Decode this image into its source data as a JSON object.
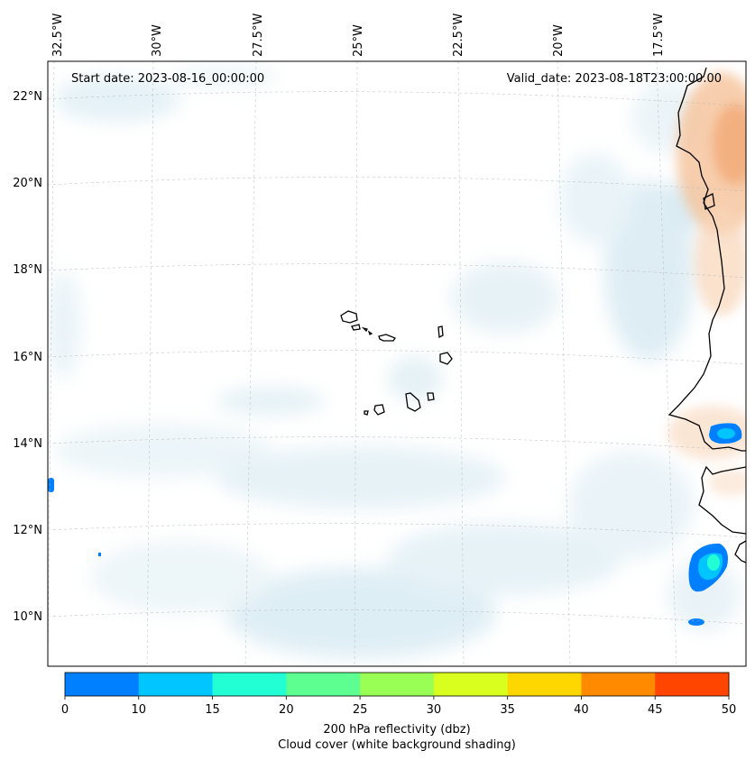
{
  "map": {
    "start_date": "Start date: 2023-08-16_00:00:00",
    "valid_date": "Valid_date: 2023-08-18T23:00:00.00",
    "lon_labels": [
      "32.5°W",
      "30°W",
      "27.5°W",
      "25°W",
      "22.5°W",
      "20°W",
      "17.5°W"
    ],
    "lat_labels": [
      "22°N",
      "20°N",
      "18°N",
      "16°N",
      "14°N",
      "12°N",
      "10°N"
    ],
    "colors": {
      "cloud": "#d6eaf2",
      "dust": "#f3b98b",
      "coast": "#000000",
      "grid": "#b0b0b0"
    }
  },
  "colorbar": {
    "ticks": [
      "0",
      "10",
      "15",
      "20",
      "25",
      "30",
      "35",
      "40",
      "45",
      "50"
    ],
    "colors": [
      "#0080ff",
      "#00c5ff",
      "#22ffd5",
      "#5dff90",
      "#9aff54",
      "#d8ff1d",
      "#ffd700",
      "#ff8a00",
      "#ff4500"
    ],
    "label": "200 hPa reflectivity (dbz)",
    "sublabel": "Cloud cover (white background shading)"
  }
}
